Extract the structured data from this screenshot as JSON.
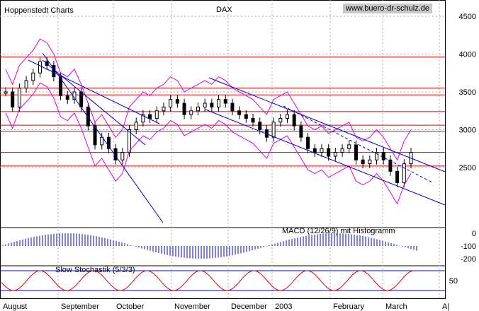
{
  "brand": "Hoppenstedt Charts",
  "website": "www.buero-dr-schulz.de",
  "chart_data": {
    "type": "line",
    "title": "DAX",
    "price_panel": {
      "ylim": [
        2000,
        4800
      ],
      "y_ticks": [
        "4500",
        "4000",
        "3500",
        "3000",
        "2500"
      ],
      "y_tick_values": [
        4500,
        4000,
        3500,
        3000,
        2500
      ],
      "series": [
        {
          "x": [
            0,
            10,
            20,
            30,
            40,
            50,
            60,
            70,
            80,
            90,
            100,
            110,
            120,
            130,
            140,
            150,
            160,
            170,
            180,
            190,
            200,
            210,
            220,
            230,
            240,
            250,
            260,
            270,
            280,
            290,
            300,
            310,
            320,
            330,
            340,
            350,
            360,
            370,
            380,
            390,
            400,
            410,
            420,
            430,
            440,
            450,
            460,
            470,
            480,
            490,
            500,
            510,
            520,
            530,
            540,
            550,
            560,
            570,
            580,
            590
          ],
          "y": [
            3500,
            3300,
            3550,
            3650,
            3750,
            3900,
            3850,
            3700,
            3450,
            3400,
            3500,
            3300,
            3050,
            2800,
            2900,
            2750,
            2600,
            2700,
            3000,
            3100,
            3200,
            3150,
            3250,
            3300,
            3400,
            3350,
            3200,
            3250,
            3300,
            3350,
            3300,
            3400,
            3350,
            3250,
            3200,
            3150,
            3100,
            3000,
            2900,
            3100,
            3150,
            3200,
            3050,
            2900,
            2750,
            2700,
            2750,
            2650,
            2700,
            2750,
            2800,
            2600,
            2550,
            2600,
            2700,
            2600,
            2450,
            2300,
            2550,
            2700
          ]
        }
      ],
      "horizontal_levels": [
        3960,
        3550,
        3460,
        3240,
        3060,
        2980,
        2700,
        2520
      ]
    },
    "macd_panel": {
      "label": "MACD (12/26/9) mit Histogramm",
      "y_ticks": [
        "0",
        "-100",
        "-200"
      ],
      "y_tick_values": [
        0,
        -100,
        -200
      ]
    },
    "stochastic_panel": {
      "label": "Slow Stochastik (5/3/3)",
      "y_ticks": [
        "50"
      ],
      "y_tick_values": [
        50
      ]
    },
    "x_ticks": [
      "August",
      "September",
      "October",
      "November",
      "December",
      "2003",
      "February",
      "March",
      "A|"
    ],
    "legend": ""
  }
}
